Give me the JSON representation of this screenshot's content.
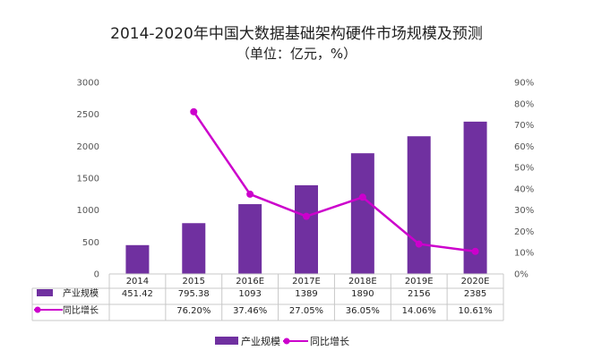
{
  "chart_data": {
    "type": "bar",
    "title": "2014-2020年中国大数据基础架构硬件市场规模及预测",
    "subtitle": "（单位：亿元，%）",
    "categories": [
      "2014",
      "2015",
      "2016E",
      "2017E",
      "2018E",
      "2019E",
      "2020E"
    ],
    "series": [
      {
        "name": "产业规模",
        "type": "bar",
        "axis": "left",
        "values": [
          451.42,
          795.38,
          1093,
          1389,
          1890,
          2156,
          2385
        ],
        "labels": [
          "451.42",
          "795.38",
          "1093",
          "1389",
          "1890",
          "2156",
          "2385"
        ]
      },
      {
        "name": "同比增长",
        "type": "line",
        "axis": "right",
        "values": [
          null,
          76.2,
          37.46,
          27.05,
          36.05,
          14.06,
          10.61
        ],
        "labels": [
          "",
          "76.20%",
          "37.46%",
          "27.05%",
          "36.05%",
          "14.06%",
          "10.61%"
        ]
      }
    ],
    "ylim": [
      0,
      3000
    ],
    "yticks": [
      "0",
      "500",
      "1000",
      "1500",
      "2000",
      "2500",
      "3000"
    ],
    "y2lim": [
      0,
      90
    ],
    "y2ticks": [
      "0%",
      "10%",
      "20%",
      "30%",
      "40%",
      "50%",
      "60%",
      "70%",
      "80%",
      "90%"
    ],
    "grid": false,
    "data_table": true,
    "legend_position": "bottom",
    "colors": {
      "bar": "#7030a0",
      "line": "#cc00cc"
    }
  }
}
